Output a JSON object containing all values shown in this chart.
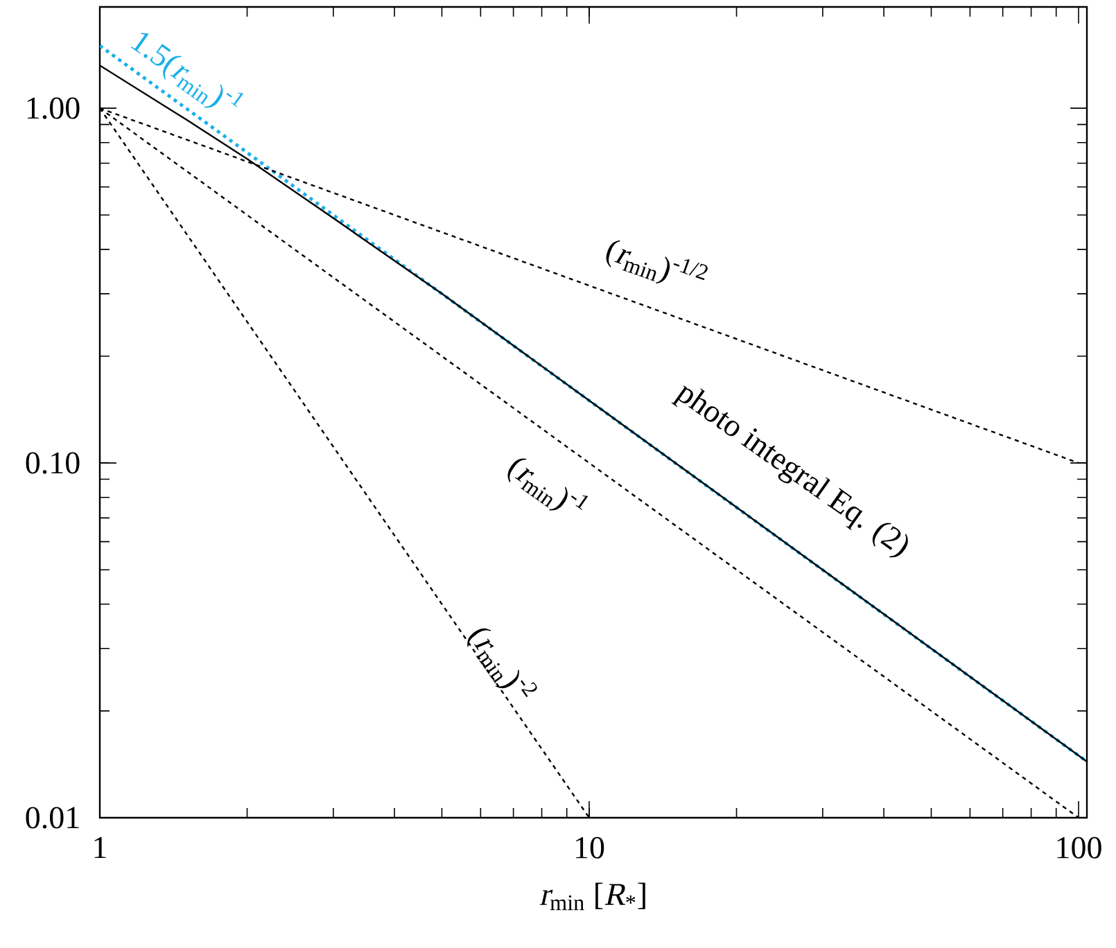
{
  "chart_data": {
    "type": "line",
    "xlabel": "*r*$_{min}$ [*R*$_{*}$]",
    "log": "xy",
    "xlim": [
      1,
      104
    ],
    "ylim": [
      0.01,
      1.93
    ],
    "xticks": [
      1,
      10,
      100
    ],
    "yticks": [
      {
        "value": 0.01,
        "label": "0.01"
      },
      {
        "value": 0.1,
        "label": "0.10"
      },
      {
        "value": 1,
        "label": "1.00"
      }
    ],
    "grid": false,
    "series": [
      {
        "color": "#1ab0e8",
        "line_style": "dotted",
        "x": [
          1,
          104
        ],
        "values": [
          1.5,
          0.0144
        ]
      },
      {
        "color": "#000000",
        "line_style": "solid",
        "x": [
          1,
          1.5,
          2,
          3,
          5,
          10,
          30,
          104
        ],
        "values": [
          1.32,
          0.93,
          0.72,
          0.49,
          0.3,
          0.15,
          0.05,
          0.0144
        ]
      },
      {
        "color": "#000000",
        "line_style": "dashed",
        "x": [
          1,
          100
        ],
        "values": [
          1,
          0.1
        ]
      },
      {
        "color": "#000000",
        "line_style": "dashed",
        "x": [
          1,
          100
        ],
        "values": [
          1,
          0.01
        ]
      },
      {
        "color": "#000000",
        "line_style": "dashed",
        "x": [
          1,
          10
        ],
        "values": [
          1,
          0.01
        ]
      }
    ],
    "annotations": [
      "1.5(*r*$_{min}$)$^{-1}$",
      "photo integral Eq. (2)",
      "(*r*$_{min}$)$^{-1/2}$",
      "(*r*$_{min}$)$^{-1}$",
      "(*r*$_{min}$)$^{-2}$"
    ]
  }
}
